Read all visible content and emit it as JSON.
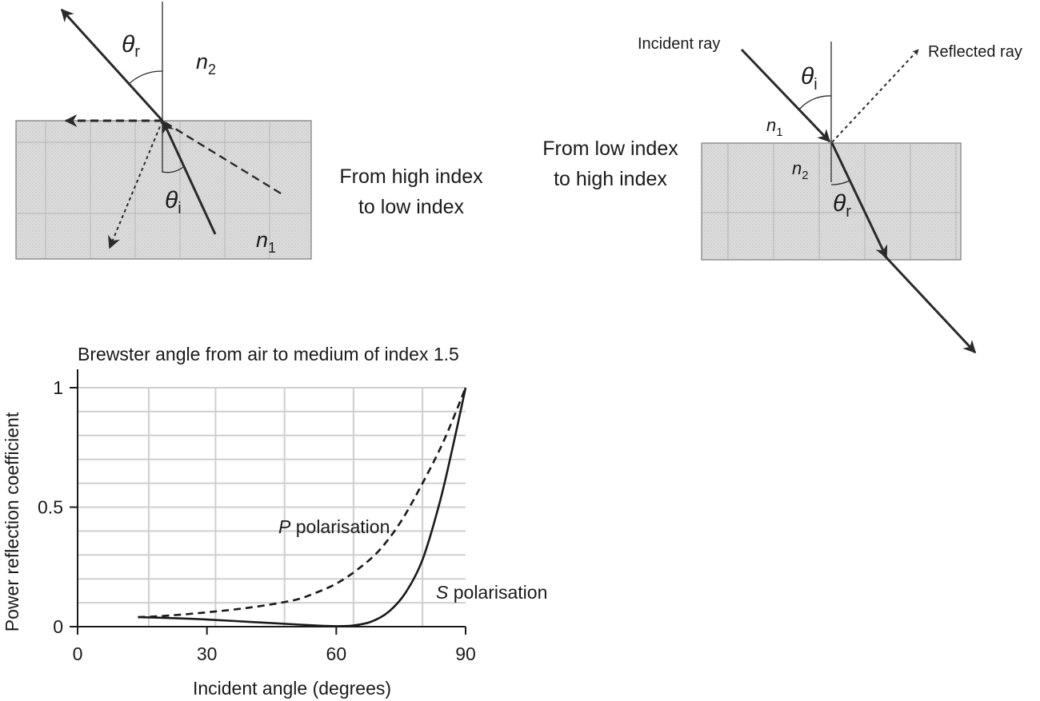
{
  "diagram_left": {
    "theta_r": {
      "sym": "θ",
      "sub": "r"
    },
    "theta_i": {
      "sym": "θ",
      "sub": "i"
    },
    "n2": {
      "sym": "n",
      "sub": "2"
    },
    "n1": {
      "sym": "n",
      "sub": "1"
    },
    "caption_line1": "From high index",
    "caption_line2": "to low index"
  },
  "diagram_right": {
    "incident_label": "Incident ray",
    "reflected_label": "Reflected ray",
    "theta_i": {
      "sym": "θ",
      "sub": "i"
    },
    "theta_r": {
      "sym": "θ",
      "sub": "r"
    },
    "n1": {
      "sym": "n",
      "sub": "1"
    },
    "n2": {
      "sym": "n",
      "sub": "2"
    },
    "caption_line1": "From low index",
    "caption_line2": "to high index"
  },
  "chart_data": {
    "type": "line",
    "title": "Brewster angle from air to medium of index 1.5",
    "xlabel": "Incident angle (degrees)",
    "ylabel": "Power reflection coefficient",
    "xlim": [
      0,
      90
    ],
    "ylim": [
      0,
      1
    ],
    "xticks": [
      "0",
      "30",
      "60",
      "90"
    ],
    "yticks": [
      "0",
      "0.5",
      "1"
    ],
    "grid": true,
    "series": [
      {
        "name": "P polarisation",
        "label_italic": "P",
        "label_rest": " polarisation",
        "style": "dashed",
        "x": [
          14,
          20,
          30,
          40,
          50,
          55,
          60,
          65,
          70,
          75,
          80,
          85,
          90
        ],
        "y": [
          0.04,
          0.045,
          0.06,
          0.08,
          0.11,
          0.14,
          0.18,
          0.24,
          0.32,
          0.44,
          0.6,
          0.78,
          1.0
        ]
      },
      {
        "name": "S polarisation",
        "label_italic": "S",
        "label_rest": " polarisation",
        "style": "solid",
        "x": [
          14,
          20,
          30,
          40,
          50,
          56,
          60,
          64,
          68,
          72,
          76,
          80,
          84,
          87,
          90
        ],
        "y": [
          0.04,
          0.037,
          0.03,
          0.02,
          0.01,
          0.004,
          0.002,
          0.005,
          0.02,
          0.06,
          0.14,
          0.28,
          0.52,
          0.75,
          1.0
        ]
      }
    ]
  }
}
